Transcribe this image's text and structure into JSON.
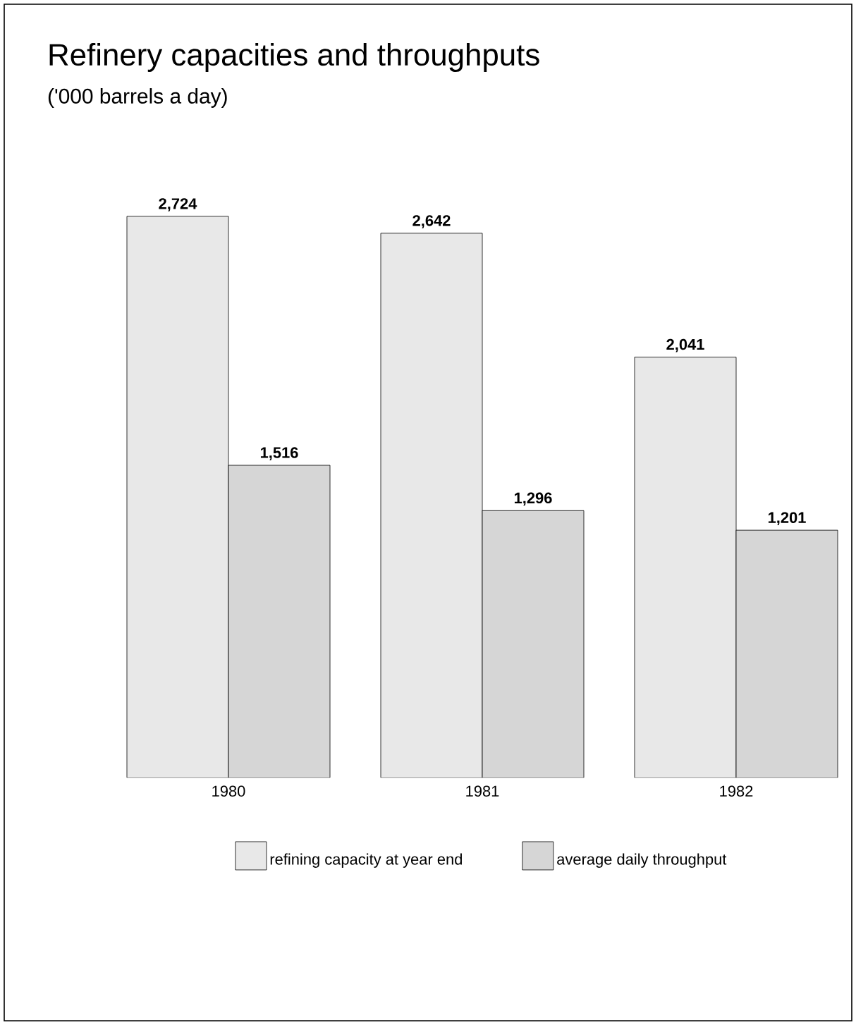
{
  "chart_data": {
    "type": "bar",
    "title": "Refinery capacities and throughputs",
    "subtitle": "('000 barrels a day)",
    "categories": [
      "1980",
      "1981",
      "1982"
    ],
    "series": [
      {
        "name": "refining capacity at year end",
        "color": "#e8e8e8",
        "values": [
          2724,
          2642,
          2041
        ],
        "value_labels": [
          "2,724",
          "2,642",
          "2,041"
        ]
      },
      {
        "name": "average daily throughput",
        "color": "#d6d6d6",
        "values": [
          1516,
          1296,
          1201
        ],
        "value_labels": [
          "1,516",
          "1,296",
          "1,201"
        ]
      }
    ],
    "legend": "bottom"
  }
}
